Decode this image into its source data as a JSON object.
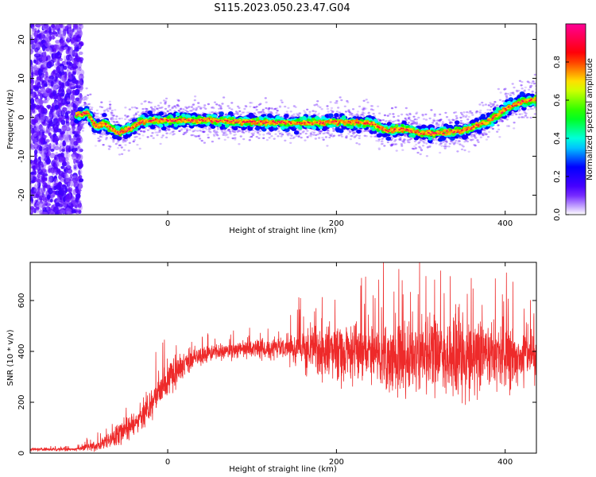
{
  "figure": {
    "title": "S115.2023.050.23.47.G04"
  },
  "chart_data": [
    {
      "type": "heatmap",
      "xlabel": "Height of straight line (km)",
      "ylabel": "Frequency (Hz)",
      "xlim": [
        -163,
        437
      ],
      "ylim": [
        -25,
        24
      ],
      "x_ticks": [
        0,
        200,
        400
      ],
      "y_ticks": [
        -20,
        -10,
        0,
        10,
        20
      ],
      "colorbar": {
        "label": "Normalized spectral amplitude",
        "range": [
          0,
          1
        ],
        "ticks": [
          0.0,
          0.2,
          0.4,
          0.6,
          0.8
        ],
        "colormap": [
          "#ff0099",
          "#ff0000",
          "#ffff00",
          "#00ff00",
          "#00ffff",
          "#0000ff",
          "#ffffff"
        ]
      },
      "ridge": {
        "x": [
          -108,
          -95,
          -85,
          -75,
          -60,
          -45,
          -30,
          -15,
          0,
          50,
          100,
          150,
          200,
          240,
          260,
          280,
          300,
          320,
          350,
          380,
          400,
          420,
          437
        ],
        "y": [
          0.5,
          1.2,
          -2.5,
          -1.5,
          -4,
          -3,
          -1,
          -0.8,
          -0.8,
          -0.8,
          -1.2,
          -1.5,
          -1.2,
          -1.5,
          -3.5,
          -3,
          -4,
          -4,
          -3.5,
          -1,
          2,
          4,
          4.5
        ]
      },
      "noise_region_x": [
        -163,
        -108
      ]
    },
    {
      "type": "line",
      "xlabel": "Height of straight line (km)",
      "ylabel": "SNR (10 * v/v)",
      "xlim": [
        -163,
        437
      ],
      "ylim": [
        0,
        750
      ],
      "x_ticks": [
        0,
        200,
        400
      ],
      "y_ticks": [
        0,
        200,
        400,
        600
      ],
      "color": "#ee2a2a",
      "envelope": {
        "x": [
          -163,
          -110,
          -80,
          -50,
          -20,
          0,
          30,
          60,
          100,
          140,
          170,
          200,
          240,
          280,
          320,
          360,
          400,
          437
        ],
        "mean": [
          15,
          15,
          30,
          90,
          180,
          300,
          370,
          400,
          410,
          410,
          400,
          400,
          390,
          380,
          390,
          380,
          380,
          385
        ],
        "amplitude": [
          8,
          8,
          30,
          60,
          80,
          90,
          60,
          45,
          45,
          60,
          140,
          170,
          170,
          190,
          200,
          190,
          170,
          130
        ]
      }
    }
  ]
}
